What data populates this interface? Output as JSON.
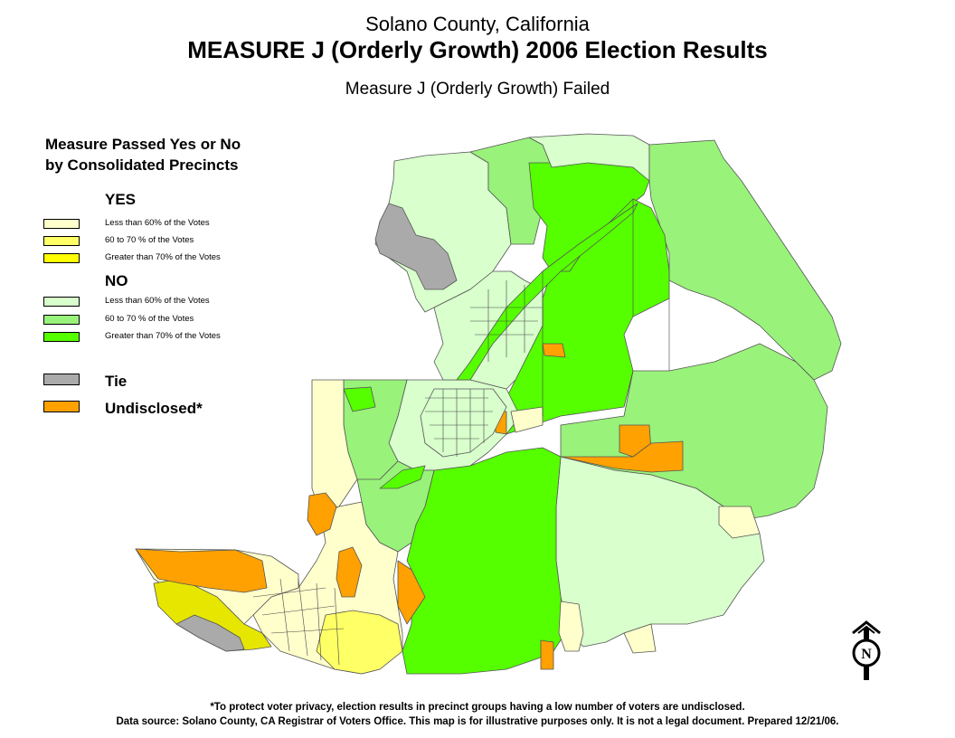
{
  "titles": {
    "county": "Solano County, California",
    "main": "MEASURE J (Orderly Growth) 2006 Election Results",
    "result": "Measure J (Orderly Growth) Failed"
  },
  "legend": {
    "heading_line1": "Measure Passed Yes or No",
    "heading_line2": "by Consolidated Precincts",
    "yes_label": "YES",
    "no_label": "NO",
    "yes_items": [
      {
        "label": "Less than 60% of the Votes",
        "color": "#ffffcc"
      },
      {
        "label": "60 to 70 % of the Votes",
        "color": "#ffff66"
      },
      {
        "label": "Greater than 70% of the Votes",
        "color": "#ffff00"
      }
    ],
    "no_items": [
      {
        "label": "Less than 60% of the Votes",
        "color": "#d8ffcc"
      },
      {
        "label": "60 to 70 % of the Votes",
        "color": "#99f27a"
      },
      {
        "label": "Greater than 70% of the Votes",
        "color": "#55ff00"
      }
    ],
    "tie": {
      "label": "Tie",
      "color": "#aaaaaa"
    },
    "undisclosed": {
      "label": "Undisclosed*",
      "color": "#ffa100"
    }
  },
  "north_arrow": {
    "letter": "N",
    "icon": "north-arrow-icon"
  },
  "footer": {
    "note": "*To protect voter privacy, election results in precinct groups having a low number of voters are undisclosed.",
    "source": "Data source: Solano County, CA Registrar of Voters Office. This map is for illustrative purposes only. It is not a legal document. Prepared 12/21/06."
  }
}
